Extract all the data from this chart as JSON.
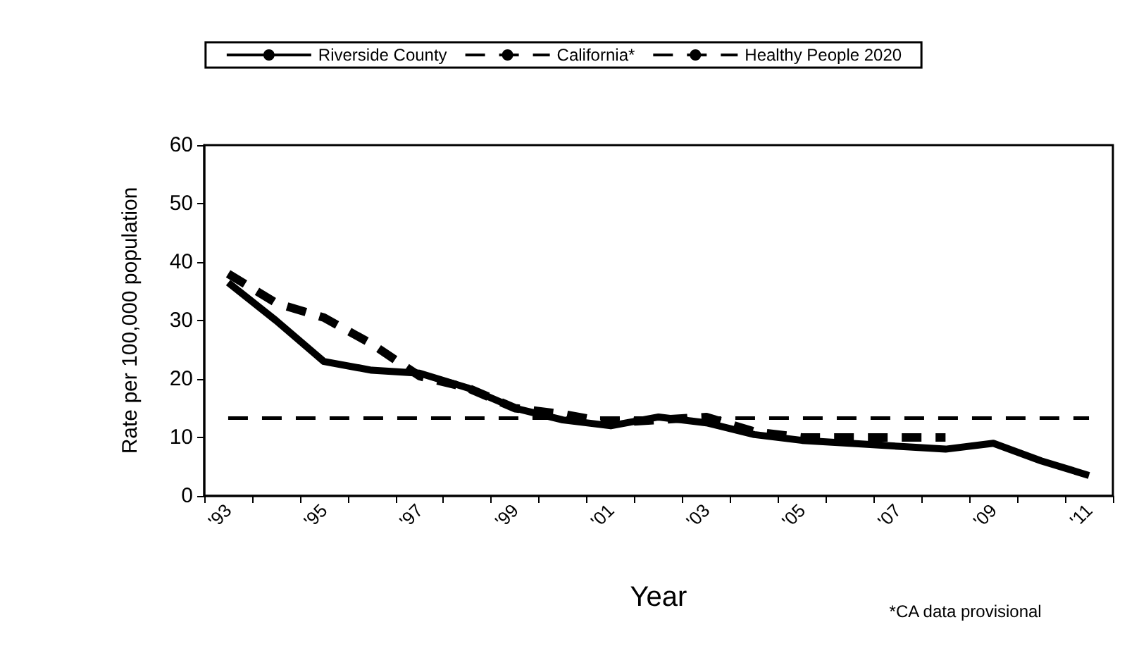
{
  "chart_data": {
    "type": "line",
    "xlabel": "Year",
    "ylabel": "Rate per 100,000 population",
    "categories": [
      "'93",
      null,
      "'95",
      null,
      "'97",
      null,
      "'99",
      null,
      "'01",
      null,
      "'03",
      null,
      "'05",
      null,
      "'07",
      null,
      "'09",
      null,
      "'11"
    ],
    "series": [
      {
        "name": "Riverside County",
        "color": "#000000",
        "line_style": "solid",
        "values": [
          36.5,
          30,
          23,
          21.5,
          21,
          18.5,
          15,
          13,
          12,
          13.5,
          12.5,
          10.5,
          9.5,
          9,
          8.5,
          8,
          9,
          6,
          3.5
        ]
      },
      {
        "name": "California*",
        "color": "#000000",
        "line_style": "dashed",
        "values": [
          38,
          33,
          30.5,
          26,
          20.5,
          18.5,
          15,
          14,
          12.5,
          13,
          13.5,
          11,
          10,
          10,
          10,
          10,
          null,
          null,
          null
        ]
      },
      {
        "name": "Healthy People 2020",
        "color": "#000000",
        "line_style": "dashed",
        "values": [
          13.3,
          13.3,
          13.3,
          13.3,
          13.3,
          13.3,
          13.3,
          13.3,
          13.3,
          13.3,
          13.3,
          13.3,
          13.3,
          13.3,
          13.3,
          13.3,
          13.3,
          13.3,
          13.3
        ]
      }
    ],
    "ylim": [
      0,
      60
    ],
    "yticks": [
      0,
      10,
      20,
      30,
      40,
      50,
      60
    ],
    "grid": false,
    "legend": "top",
    "marker": "none",
    "annotations": [
      "*CA data provisional"
    ]
  }
}
